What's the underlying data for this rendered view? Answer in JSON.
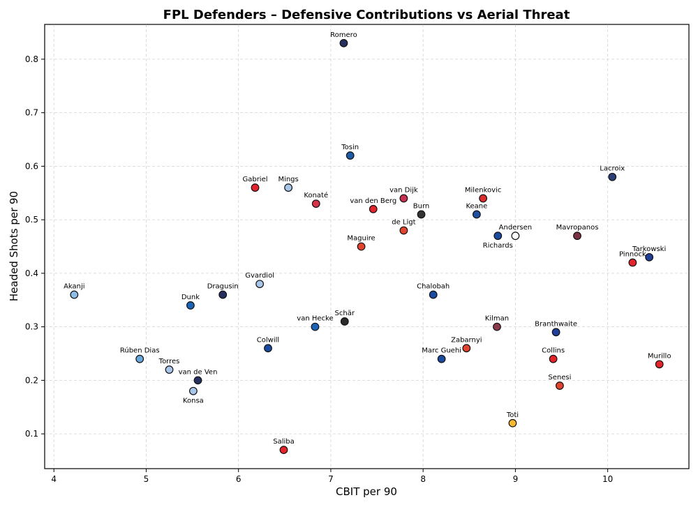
{
  "chart_data": {
    "type": "scatter",
    "title": "FPL Defenders – Defensive Contributions vs Aerial Threat",
    "xlabel": "CBIT per 90",
    "ylabel": "Headed Shots per 90",
    "xlim": [
      3.9,
      10.88
    ],
    "ylim": [
      0.035,
      0.865
    ],
    "xticks": [
      4,
      5,
      6,
      7,
      8,
      9,
      10
    ],
    "yticks": [
      0.1,
      0.2,
      0.3,
      0.4,
      0.5,
      0.6,
      0.7,
      0.8
    ],
    "grid": true,
    "points": [
      {
        "name": "Romero",
        "x": 7.14,
        "y": 0.83,
        "color": "#25305e",
        "label_pos": "above"
      },
      {
        "name": "Tosin",
        "x": 7.21,
        "y": 0.62,
        "color": "#1f5aa6",
        "label_pos": "above"
      },
      {
        "name": "Lacroix",
        "x": 10.05,
        "y": 0.58,
        "color": "#2a3f75",
        "label_pos": "above"
      },
      {
        "name": "Gabriel",
        "x": 6.18,
        "y": 0.56,
        "color": "#e3242b",
        "label_pos": "above"
      },
      {
        "name": "Mings",
        "x": 6.54,
        "y": 0.56,
        "color": "#a7c6ea",
        "label_pos": "above"
      },
      {
        "name": "Konaté",
        "x": 6.84,
        "y": 0.53,
        "color": "#d6334a",
        "label_pos": "above"
      },
      {
        "name": "van Dijk",
        "x": 7.79,
        "y": 0.54,
        "color": "#c8314f",
        "label_pos": "above"
      },
      {
        "name": "Milenkovic",
        "x": 8.65,
        "y": 0.54,
        "color": "#de2c2c",
        "label_pos": "above"
      },
      {
        "name": "van den Berg",
        "x": 7.46,
        "y": 0.52,
        "color": "#e3242b",
        "label_pos": "above"
      },
      {
        "name": "Burn",
        "x": 7.98,
        "y": 0.51,
        "color": "#333333",
        "label_pos": "above"
      },
      {
        "name": "Keane",
        "x": 8.58,
        "y": 0.51,
        "color": "#1f4fa0",
        "label_pos": "above"
      },
      {
        "name": "de Ligt",
        "x": 7.79,
        "y": 0.48,
        "color": "#e0442e",
        "label_pos": "above"
      },
      {
        "name": "Richards",
        "x": 8.81,
        "y": 0.47,
        "color": "#1b4b9e",
        "label_pos": "below"
      },
      {
        "name": "Andersen",
        "x": 9.0,
        "y": 0.47,
        "color": "#ffffff",
        "label_pos": "above"
      },
      {
        "name": "Mavropanos",
        "x": 9.67,
        "y": 0.47,
        "color": "#7a3040",
        "label_pos": "above"
      },
      {
        "name": "Maguire",
        "x": 7.33,
        "y": 0.45,
        "color": "#e2432f",
        "label_pos": "above"
      },
      {
        "name": "Pinnock",
        "x": 10.27,
        "y": 0.42,
        "color": "#e3242b",
        "label_pos": "above"
      },
      {
        "name": "Tarkowski",
        "x": 10.45,
        "y": 0.43,
        "color": "#1f3f99",
        "label_pos": "above"
      },
      {
        "name": "Akanji",
        "x": 4.22,
        "y": 0.36,
        "color": "#8fbce6",
        "label_pos": "above"
      },
      {
        "name": "Gvardiol",
        "x": 6.23,
        "y": 0.38,
        "color": "#a7c6ea",
        "label_pos": "above"
      },
      {
        "name": "Dragusin",
        "x": 5.83,
        "y": 0.36,
        "color": "#25305e",
        "label_pos": "above"
      },
      {
        "name": "Dunk",
        "x": 5.48,
        "y": 0.34,
        "color": "#1b63b8",
        "label_pos": "above"
      },
      {
        "name": "Chalobah",
        "x": 8.11,
        "y": 0.36,
        "color": "#1b4b9e",
        "label_pos": "above"
      },
      {
        "name": "Schär",
        "x": 7.15,
        "y": 0.31,
        "color": "#2b2b2b",
        "label_pos": "above"
      },
      {
        "name": "van Hecke",
        "x": 6.83,
        "y": 0.3,
        "color": "#1b63b8",
        "label_pos": "above"
      },
      {
        "name": "Kilman",
        "x": 8.8,
        "y": 0.3,
        "color": "#8a3a48",
        "label_pos": "above"
      },
      {
        "name": "Branthwaite",
        "x": 9.44,
        "y": 0.29,
        "color": "#1f3f99",
        "label_pos": "above"
      },
      {
        "name": "Colwill",
        "x": 6.32,
        "y": 0.26,
        "color": "#1b4b9e",
        "label_pos": "above"
      },
      {
        "name": "Zabarnyi",
        "x": 8.47,
        "y": 0.26,
        "color": "#e2432f",
        "label_pos": "above"
      },
      {
        "name": "Marc Guehi",
        "x": 8.2,
        "y": 0.24,
        "color": "#1b4b9e",
        "label_pos": "above"
      },
      {
        "name": "Collins",
        "x": 9.41,
        "y": 0.24,
        "color": "#e3242b",
        "label_pos": "above"
      },
      {
        "name": "Rúben Dias",
        "x": 4.93,
        "y": 0.24,
        "color": "#6aa7dc",
        "label_pos": "above"
      },
      {
        "name": "Torres",
        "x": 5.25,
        "y": 0.22,
        "color": "#a7c6ea",
        "label_pos": "above"
      },
      {
        "name": "van de Ven",
        "x": 5.56,
        "y": 0.2,
        "color": "#25305e",
        "label_pos": "above"
      },
      {
        "name": "Konsa",
        "x": 5.51,
        "y": 0.18,
        "color": "#a7c6ea",
        "label_pos": "below"
      },
      {
        "name": "Murillo",
        "x": 10.56,
        "y": 0.23,
        "color": "#e3242b",
        "label_pos": "above"
      },
      {
        "name": "Senesi",
        "x": 9.48,
        "y": 0.19,
        "color": "#e0442e",
        "label_pos": "above"
      },
      {
        "name": "Toti",
        "x": 8.97,
        "y": 0.12,
        "color": "#f5b82e",
        "label_pos": "above"
      },
      {
        "name": "Saliba",
        "x": 6.49,
        "y": 0.07,
        "color": "#e3242b",
        "label_pos": "above"
      }
    ]
  }
}
